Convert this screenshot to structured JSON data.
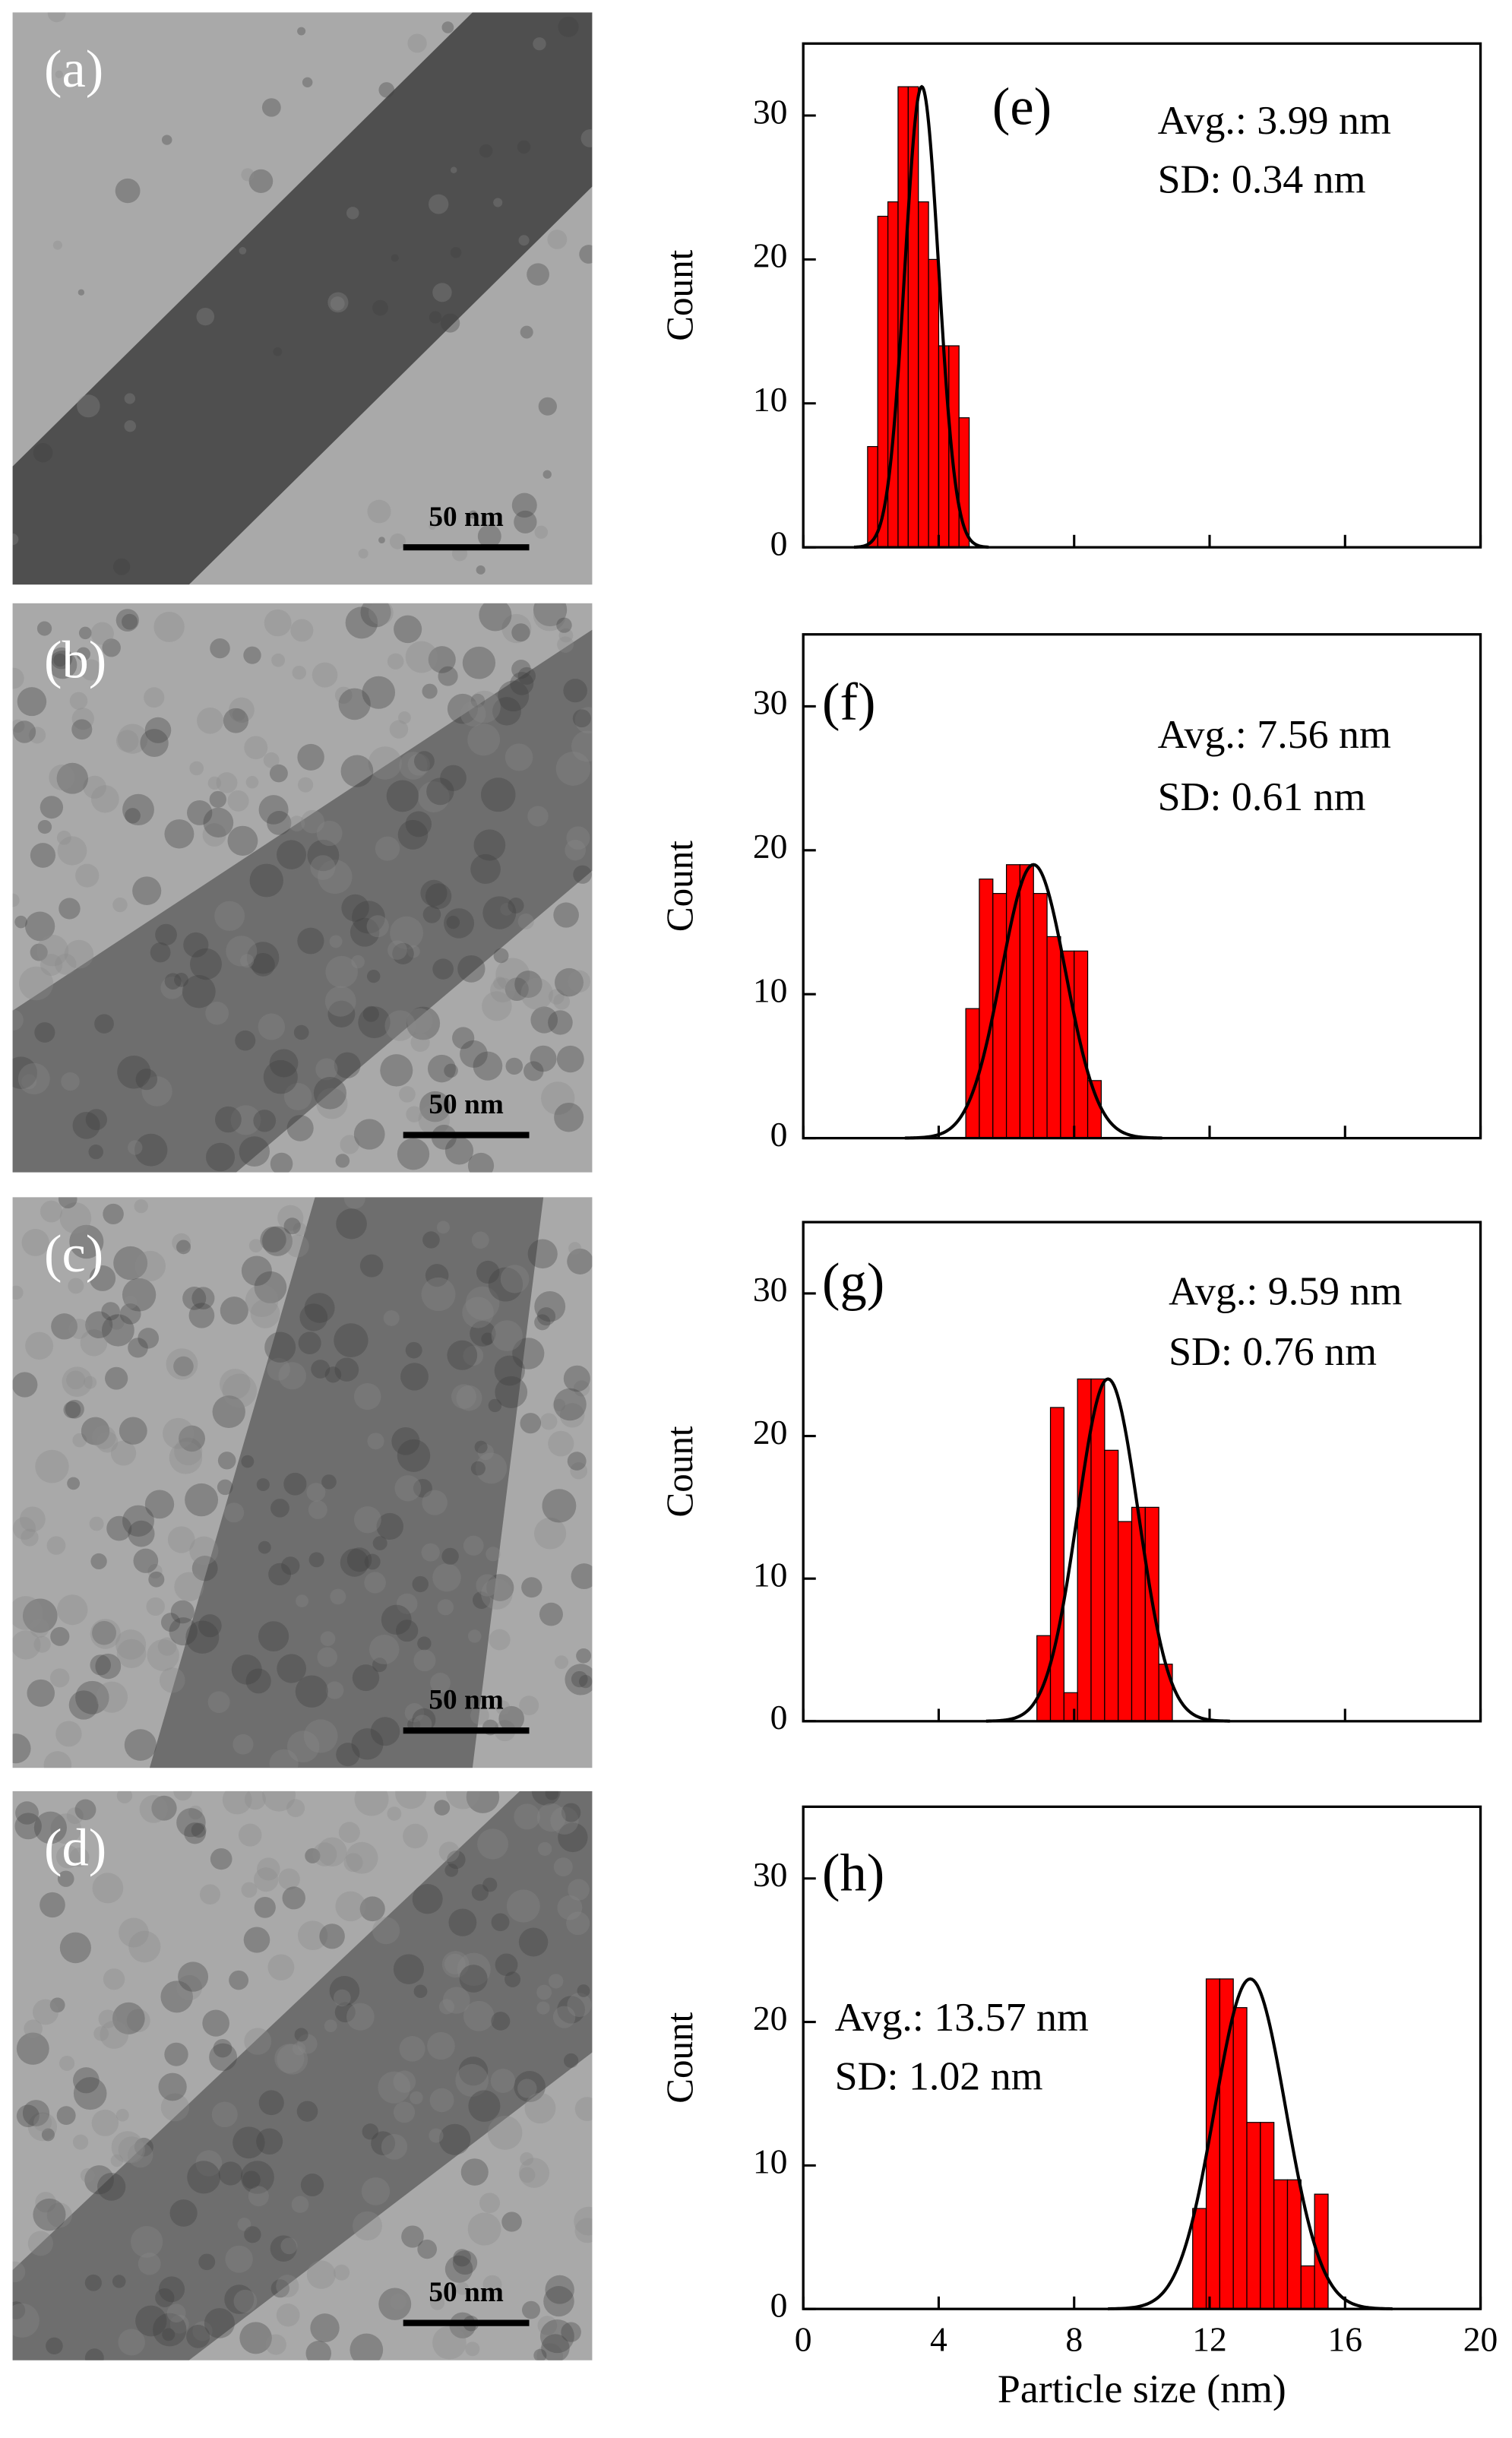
{
  "images": [
    {
      "label": "(a)",
      "scale_bar": "50 nm"
    },
    {
      "label": "(b)",
      "scale_bar": "50 nm"
    },
    {
      "label": "(c)",
      "scale_bar": "50 nm"
    },
    {
      "label": "(d)",
      "scale_bar": "50 nm"
    }
  ],
  "chart_data": [
    {
      "type": "histogram",
      "panel": "(e)",
      "annotations": [
        "Avg.: 3.99 nm",
        "SD: 0.34 nm"
      ],
      "ylabel": "Count",
      "bins": [
        1.9,
        2.2,
        2.5,
        2.8,
        3.1,
        3.4,
        3.7,
        4.0,
        4.3,
        4.6,
        4.9
      ],
      "values": [
        7,
        23,
        24,
        32,
        32,
        24,
        20,
        14,
        14,
        9
      ],
      "color": "#ff0000",
      "fit": {
        "center": 3.5,
        "sigma": 0.5,
        "amplitude": 32
      },
      "fit_color": "#000000",
      "xlim": [
        0,
        20
      ],
      "ylim": [
        0,
        35
      ],
      "xticks": [
        0,
        4,
        8,
        12,
        16,
        20
      ],
      "yticks": [
        0,
        10,
        20,
        30
      ],
      "xtick_labels": false
    },
    {
      "type": "histogram",
      "panel": "(f)",
      "annotations": [
        "Avg.: 7.56 nm",
        "SD: 0.61 nm"
      ],
      "ylabel": "Count",
      "bins": [
        4.8,
        5.2,
        5.6,
        6.0,
        6.4,
        6.8,
        7.2,
        7.6,
        8.0,
        8.4,
        8.8
      ],
      "values": [
        9,
        18,
        17,
        19,
        19,
        17,
        14,
        13,
        13,
        4
      ],
      "color": "#ff0000",
      "fit": {
        "center": 6.8,
        "sigma": 0.95,
        "amplitude": 19
      },
      "fit_color": "#000000",
      "xlim": [
        0,
        20
      ],
      "ylim": [
        0,
        35
      ],
      "xticks": [
        0,
        4,
        8,
        12,
        16,
        20
      ],
      "yticks": [
        0,
        10,
        20,
        30
      ],
      "xtick_labels": false
    },
    {
      "type": "histogram",
      "panel": "(g)",
      "annotations": [
        "Avg.: 9.59 nm",
        "SD: 0.76 nm"
      ],
      "ylabel": "Count",
      "bins": [
        6.9,
        7.3,
        7.7,
        8.1,
        8.5,
        8.9,
        9.3,
        9.7,
        10.1,
        10.5,
        10.9
      ],
      "values": [
        6,
        22,
        2,
        24,
        24,
        19,
        14,
        15,
        15,
        4
      ],
      "color": "#ff0000",
      "fit": {
        "center": 9.0,
        "sigma": 0.9,
        "amplitude": 24
      },
      "fit_color": "#000000",
      "xlim": [
        0,
        20
      ],
      "ylim": [
        0,
        35
      ],
      "xticks": [
        0,
        4,
        8,
        12,
        16,
        20
      ],
      "yticks": [
        0,
        10,
        20,
        30
      ],
      "xtick_labels": false
    },
    {
      "type": "histogram",
      "panel": "(h)",
      "annotations": [
        "Avg.: 13.57 nm",
        "SD: 1.02 nm"
      ],
      "ylabel": "Count",
      "xlabel": "Particle size (nm)",
      "bins": [
        11.5,
        11.9,
        12.3,
        12.7,
        13.1,
        13.5,
        13.9,
        14.3,
        14.7,
        15.1,
        15.5
      ],
      "values": [
        7,
        23,
        23,
        21,
        13,
        13,
        9,
        9,
        3,
        8
      ],
      "color": "#ff0000",
      "fit": {
        "center": 13.2,
        "sigma": 1.05,
        "amplitude": 23
      },
      "fit_color": "#000000",
      "xlim": [
        0,
        20
      ],
      "ylim": [
        0,
        35
      ],
      "xticks": [
        0,
        4,
        8,
        12,
        16,
        20
      ],
      "yticks": [
        0,
        10,
        20,
        30
      ],
      "xtick_labels": true
    }
  ]
}
